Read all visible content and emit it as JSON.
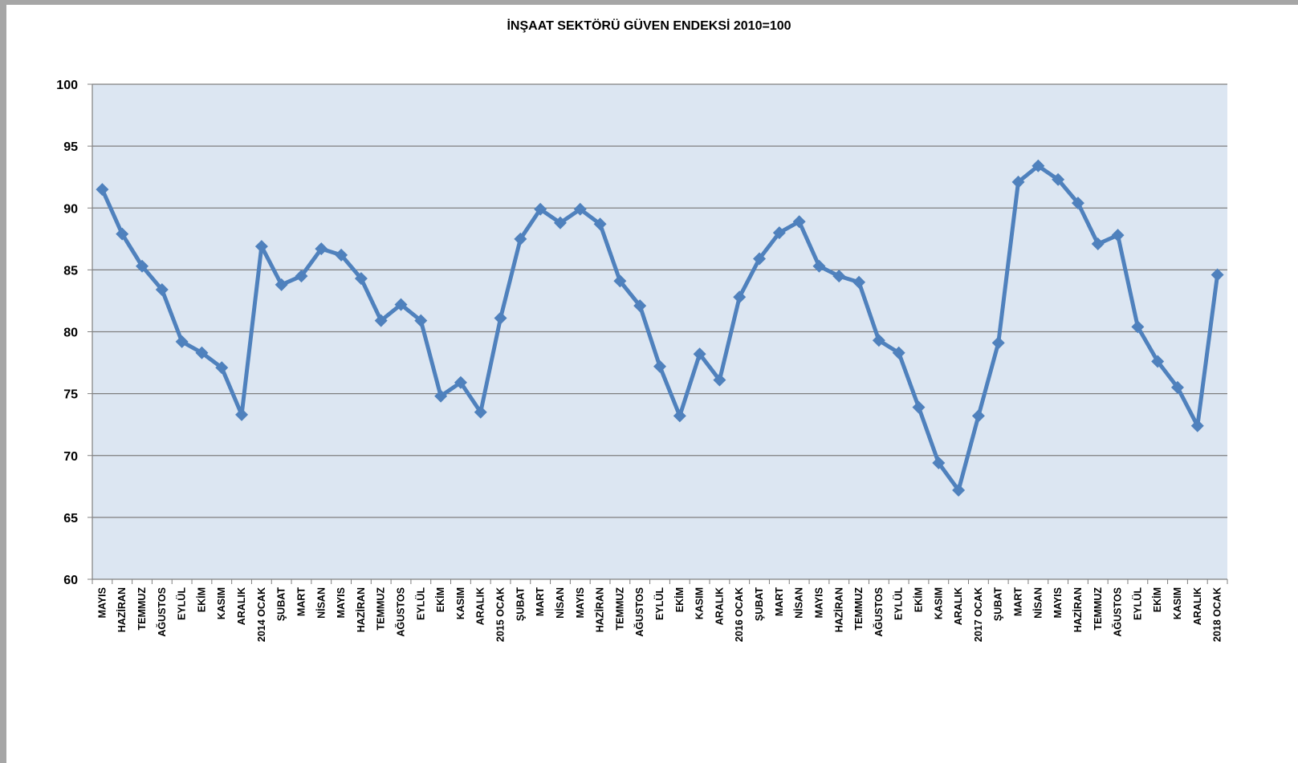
{
  "chart_data": {
    "type": "line",
    "title": "İNŞAAT SEKTÖRÜ GÜVEN ENDEKSİ 2010=100",
    "xlabel": "",
    "ylabel": "",
    "ylim": [
      60,
      100
    ],
    "yticks": [
      60,
      65,
      70,
      75,
      80,
      85,
      90,
      95,
      100
    ],
    "grid": true,
    "colors": {
      "line": "#4f81bd",
      "plot_background": "#dce6f2",
      "gridline": "#7f7f7f",
      "frame": "#a6a6a6"
    },
    "categories": [
      "MAYIS",
      "HAZİRAN",
      "TEMMUZ",
      "AĞUSTOS",
      "EYLÜL",
      "EKİM",
      "KASIM",
      "ARALIK",
      "2014 OCAK",
      "ŞUBAT",
      "MART",
      "NİSAN",
      "MAYIS",
      "HAZİRAN",
      "TEMMUZ",
      "AĞUSTOS",
      "EYLÜL",
      "EKİM",
      "KASIM",
      "ARALIK",
      "2015 OCAK",
      "ŞUBAT",
      "MART",
      "NİSAN",
      "MAYIS",
      "HAZİRAN",
      "TEMMUZ",
      "AĞUSTOS",
      "EYLÜL",
      "EKİM",
      "KASIM",
      "ARALIK",
      "2016 OCAK",
      "ŞUBAT",
      "MART",
      "NİSAN",
      "MAYIS",
      "HAZİRAN",
      "TEMMUZ",
      "AĞUSTOS",
      "EYLÜL",
      "EKİM",
      "KASIM",
      "ARALIK",
      "2017 OCAK",
      "ŞUBAT",
      "MART",
      "NİSAN",
      "MAYIS",
      "HAZİRAN",
      "TEMMUZ",
      "AĞUSTOS",
      "EYLÜL",
      "EKİM",
      "KASIM",
      "ARALIK",
      "2018 OCAK"
    ],
    "series": [
      {
        "values": [
          91.5,
          87.9,
          85.3,
          83.4,
          79.2,
          78.3,
          77.1,
          73.3,
          86.9,
          83.8,
          84.5,
          86.7,
          86.2,
          84.3,
          80.9,
          82.2,
          80.9,
          74.8,
          75.9,
          73.5,
          81.1,
          87.5,
          89.9,
          88.8,
          89.9,
          88.7,
          84.1,
          82.1,
          77.2,
          73.2,
          78.2,
          76.1,
          82.8,
          85.9,
          88.0,
          88.9,
          85.3,
          84.5,
          84.0,
          79.3,
          78.3,
          73.9,
          69.4,
          67.2,
          73.2,
          79.1,
          92.1,
          93.4,
          92.3,
          90.4,
          87.1,
          87.8,
          80.4,
          77.6,
          75.5,
          72.4,
          84.6
        ]
      }
    ]
  }
}
